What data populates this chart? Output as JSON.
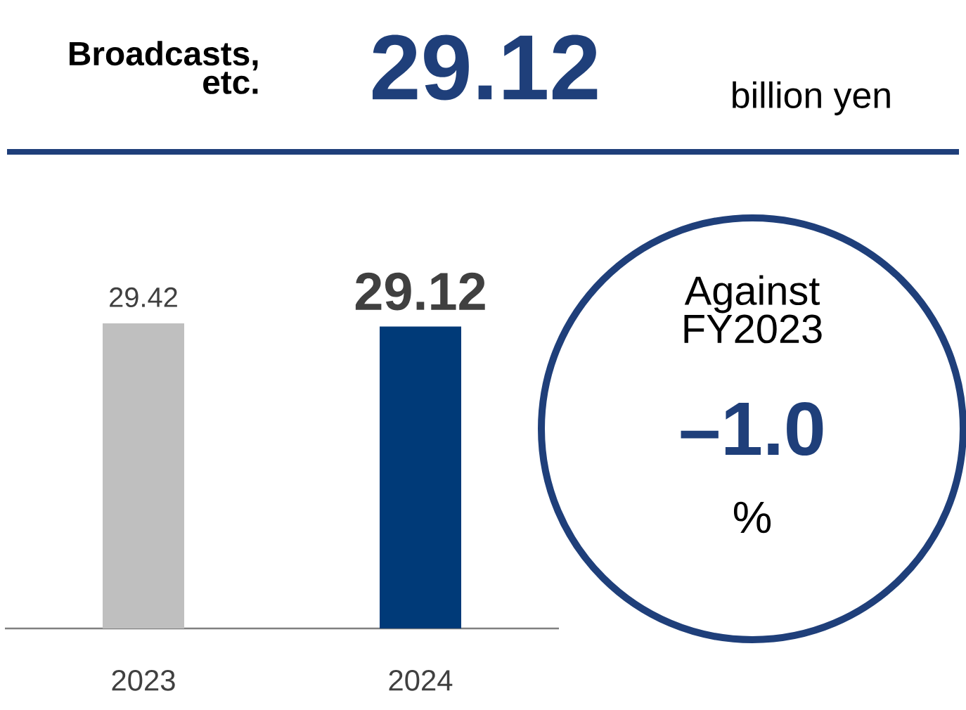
{
  "chart_data": {
    "type": "bar",
    "title": "Broadcasts, etc.",
    "categories": [
      "2023",
      "2024"
    ],
    "values": [
      29.42,
      29.12
    ],
    "colors": [
      "#bfbfbf",
      "#003a78"
    ],
    "data_labels": true,
    "annotations": [
      "29.12",
      "billion yen",
      "Against FY2023",
      "–1.0",
      "%"
    ]
  }
}
